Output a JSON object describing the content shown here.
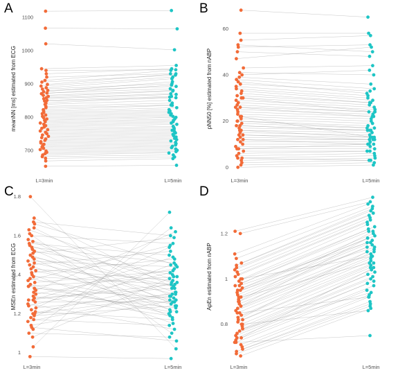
{
  "colors": {
    "left": "#f26b38",
    "right": "#1ec5c5",
    "line": "#8c8c8c"
  },
  "chart_data": [
    {
      "type": "scatter",
      "panel": "A",
      "ylabel": "meanNN [ms] estimated from ECG",
      "categories": [
        "L=3min",
        "L=5min"
      ],
      "yticks": [
        700,
        800,
        900,
        1000,
        1100
      ],
      "ylim": [
        635,
        1135
      ],
      "pairs": [
        [
          1118,
          1120
        ],
        [
          1067,
          1065
        ],
        [
          1020,
          1002
        ],
        [
          945,
          955
        ],
        [
          940,
          942
        ],
        [
          930,
          945
        ],
        [
          920,
          930
        ],
        [
          910,
          940
        ],
        [
          905,
          926
        ],
        [
          898,
          930
        ],
        [
          893,
          920
        ],
        [
          888,
          915
        ],
        [
          884,
          900
        ],
        [
          880,
          892
        ],
        [
          876,
          906
        ],
        [
          872,
          885
        ],
        [
          870,
          896
        ],
        [
          865,
          880
        ],
        [
          862,
          878
        ],
        [
          858,
          870
        ],
        [
          855,
          868
        ],
        [
          850,
          862
        ],
        [
          848,
          858
        ],
        [
          842,
          860
        ],
        [
          838,
          850
        ],
        [
          832,
          842
        ],
        [
          828,
          836
        ],
        [
          822,
          835
        ],
        [
          818,
          828
        ],
        [
          814,
          822
        ],
        [
          810,
          818
        ],
        [
          806,
          814
        ],
        [
          802,
          810
        ],
        [
          798,
          806
        ],
        [
          794,
          802
        ],
        [
          790,
          799
        ],
        [
          786,
          794
        ],
        [
          782,
          790
        ],
        [
          778,
          786
        ],
        [
          774,
          782
        ],
        [
          770,
          778
        ],
        [
          766,
          772
        ],
        [
          762,
          768
        ],
        [
          758,
          764
        ],
        [
          754,
          760
        ],
        [
          750,
          756
        ],
        [
          746,
          752
        ],
        [
          742,
          748
        ],
        [
          738,
          744
        ],
        [
          734,
          740
        ],
        [
          730,
          736
        ],
        [
          726,
          732
        ],
        [
          722,
          728
        ],
        [
          718,
          724
        ],
        [
          714,
          720
        ],
        [
          710,
          716
        ],
        [
          706,
          712
        ],
        [
          702,
          708
        ],
        [
          698,
          704
        ],
        [
          694,
          700
        ],
        [
          690,
          696
        ],
        [
          686,
          692
        ],
        [
          681,
          686
        ],
        [
          676,
          680
        ],
        [
          668,
          675
        ],
        [
          652,
          655
        ]
      ]
    },
    {
      "type": "scatter",
      "panel": "B",
      "ylabel": "pNN50 [%] estimated from nABP",
      "categories": [
        "L=3min",
        "L=5min"
      ],
      "yticks": [
        0,
        20,
        40,
        60
      ],
      "ylim": [
        -2,
        70
      ],
      "pairs": [
        [
          68,
          65
        ],
        [
          58,
          58
        ],
        [
          55,
          57
        ],
        [
          53,
          50
        ],
        [
          52,
          53
        ],
        [
          50,
          48
        ],
        [
          47,
          52
        ],
        [
          43,
          44
        ],
        [
          41,
          40
        ],
        [
          40,
          42
        ],
        [
          39,
          36
        ],
        [
          38,
          34
        ],
        [
          37,
          32
        ],
        [
          36,
          33
        ],
        [
          35,
          31
        ],
        [
          34,
          30
        ],
        [
          33,
          29
        ],
        [
          32,
          28
        ],
        [
          31,
          28
        ],
        [
          30,
          27
        ],
        [
          29,
          26
        ],
        [
          28,
          25
        ],
        [
          27,
          24
        ],
        [
          26,
          24
        ],
        [
          25,
          23
        ],
        [
          24,
          22
        ],
        [
          23,
          21
        ],
        [
          22,
          20
        ],
        [
          21,
          19
        ],
        [
          20,
          18
        ],
        [
          19,
          17
        ],
        [
          18,
          16
        ],
        [
          17,
          16
        ],
        [
          16,
          15
        ],
        [
          15,
          14
        ],
        [
          14,
          13
        ],
        [
          13,
          12
        ],
        [
          12,
          12
        ],
        [
          11,
          11
        ],
        [
          10,
          10
        ],
        [
          9,
          9
        ],
        [
          8,
          8
        ],
        [
          7,
          7
        ],
        [
          6,
          7
        ],
        [
          5,
          6
        ],
        [
          4,
          5
        ],
        [
          3,
          4
        ],
        [
          2,
          3
        ],
        [
          1,
          2
        ],
        [
          0,
          1
        ],
        [
          22,
          13
        ],
        [
          18,
          16
        ],
        [
          14,
          12
        ],
        [
          26,
          22
        ],
        [
          12,
          10
        ],
        [
          30,
          24
        ],
        [
          16,
          13
        ],
        [
          8,
          10
        ],
        [
          20,
          17
        ],
        [
          4,
          3
        ]
      ]
    },
    {
      "type": "scatter",
      "panel": "C",
      "ylabel": "MSEn estimated from ECG",
      "categories": [
        "L=3min",
        "L=5min"
      ],
      "yticks": [
        1.0,
        1.2,
        1.4,
        1.6,
        1.8
      ],
      "ylim": [
        0.96,
        1.82
      ],
      "pairs": [
        [
          1.8,
          1.02
        ],
        [
          1.69,
          1.33
        ],
        [
          1.67,
          1.6
        ],
        [
          1.66,
          1.45
        ],
        [
          1.64,
          1.29
        ],
        [
          1.63,
          1.38
        ],
        [
          1.61,
          1.1
        ],
        [
          1.6,
          1.56
        ],
        [
          1.58,
          1.36
        ],
        [
          1.57,
          1.24
        ],
        [
          1.56,
          1.5
        ],
        [
          1.55,
          1.31
        ],
        [
          1.54,
          1.46
        ],
        [
          1.53,
          1.22
        ],
        [
          1.52,
          1.4
        ],
        [
          1.51,
          1.59
        ],
        [
          1.5,
          1.27
        ],
        [
          1.49,
          1.34
        ],
        [
          1.48,
          1.18
        ],
        [
          1.47,
          1.44
        ],
        [
          1.46,
          1.3
        ],
        [
          1.45,
          1.52
        ],
        [
          1.44,
          1.21
        ],
        [
          1.43,
          1.37
        ],
        [
          1.42,
          1.26
        ],
        [
          1.41,
          1.48
        ],
        [
          1.4,
          1.15
        ],
        [
          1.39,
          1.35
        ],
        [
          1.38,
          1.25
        ],
        [
          1.37,
          1.55
        ],
        [
          1.36,
          1.42
        ],
        [
          1.35,
          1.2
        ],
        [
          1.34,
          1.39
        ],
        [
          1.33,
          1.28
        ],
        [
          1.32,
          1.62
        ],
        [
          1.31,
          1.23
        ],
        [
          1.3,
          1.43
        ],
        [
          1.29,
          1.19
        ],
        [
          1.28,
          1.33
        ],
        [
          1.27,
          1.49
        ],
        [
          1.26,
          1.26
        ],
        [
          1.25,
          1.12
        ],
        [
          1.24,
          1.41
        ],
        [
          1.23,
          1.3
        ],
        [
          1.22,
          1.54
        ],
        [
          1.21,
          1.17
        ],
        [
          1.2,
          1.36
        ],
        [
          1.19,
          1.24
        ],
        [
          1.18,
          1.45
        ],
        [
          1.17,
          1.14
        ],
        [
          1.16,
          1.31
        ],
        [
          1.14,
          1.27
        ],
        [
          1.12,
          1.64
        ],
        [
          1.1,
          1.08
        ],
        [
          1.08,
          1.39
        ],
        [
          1.03,
          1.72
        ],
        [
          0.98,
          0.97
        ],
        [
          1.34,
          1.21
        ],
        [
          1.27,
          1.35
        ],
        [
          1.2,
          1.29
        ],
        [
          1.13,
          1.06
        ]
      ]
    },
    {
      "type": "scatter",
      "panel": "D",
      "ylabel": "ApEn estimated from nABP",
      "categories": [
        "L=3min",
        "L=5min"
      ],
      "yticks": [
        0.8,
        1.0,
        1.2
      ],
      "ylim": [
        0.64,
        1.38
      ],
      "pairs": [
        [
          1.21,
          1.36
        ],
        [
          1.2,
          1.34
        ],
        [
          1.11,
          1.33
        ],
        [
          1.09,
          1.32
        ],
        [
          1.07,
          1.31
        ],
        [
          1.06,
          1.3
        ],
        [
          1.05,
          1.29
        ],
        [
          1.04,
          1.28
        ],
        [
          1.03,
          1.27
        ],
        [
          1.02,
          1.26
        ],
        [
          1.01,
          1.25
        ],
        [
          1.0,
          1.24
        ],
        [
          0.99,
          1.23
        ],
        [
          0.98,
          1.22
        ],
        [
          0.97,
          1.21
        ],
        [
          0.96,
          1.2
        ],
        [
          0.95,
          1.19
        ],
        [
          0.94,
          1.18
        ],
        [
          0.93,
          1.17
        ],
        [
          0.92,
          1.16
        ],
        [
          0.91,
          1.15
        ],
        [
          0.9,
          1.14
        ],
        [
          0.89,
          1.13
        ],
        [
          0.88,
          1.12
        ],
        [
          0.87,
          1.11
        ],
        [
          0.86,
          1.1
        ],
        [
          0.85,
          1.09
        ],
        [
          0.84,
          1.08
        ],
        [
          0.83,
          1.07
        ],
        [
          0.82,
          1.06
        ],
        [
          0.81,
          1.05
        ],
        [
          0.8,
          1.04
        ],
        [
          0.79,
          1.03
        ],
        [
          0.78,
          1.02
        ],
        [
          0.77,
          1.01
        ],
        [
          0.76,
          1.0
        ],
        [
          0.75,
          0.99
        ],
        [
          0.74,
          0.98
        ],
        [
          0.73,
          0.97
        ],
        [
          0.72,
          0.95
        ],
        [
          0.71,
          0.93
        ],
        [
          0.7,
          0.92
        ],
        [
          0.69,
          0.9
        ],
        [
          0.68,
          0.89
        ],
        [
          0.67,
          0.88
        ],
        [
          0.66,
          0.87
        ],
        [
          1.0,
          1.1
        ],
        [
          0.95,
          1.14
        ],
        [
          0.92,
          1.07
        ],
        [
          0.88,
          1.18
        ],
        [
          0.85,
          0.92
        ],
        [
          0.82,
          1.12
        ],
        [
          0.78,
          0.94
        ],
        [
          0.74,
          1.05
        ],
        [
          0.9,
          1.21
        ],
        [
          0.97,
          1.16
        ],
        [
          0.8,
          0.86
        ],
        [
          0.72,
          0.75
        ]
      ]
    }
  ]
}
